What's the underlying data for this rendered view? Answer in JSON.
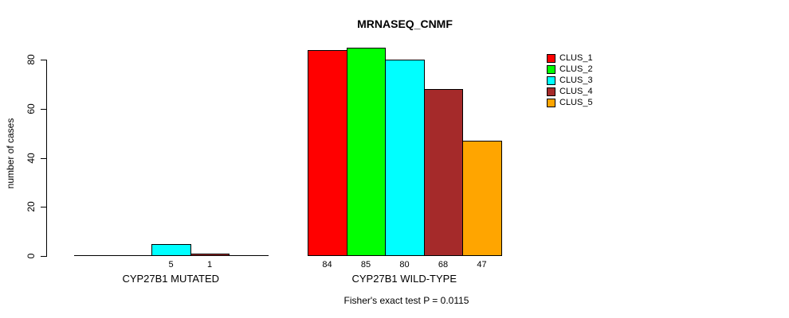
{
  "chart_data": {
    "type": "bar",
    "title": "MRNASEQ_CNMF",
    "ylabel": "number of cases",
    "xlabel": "",
    "ylim": [
      0,
      80
    ],
    "yticks": [
      0,
      20,
      40,
      60,
      80
    ],
    "grid": false,
    "legend_position": "top-right",
    "categories": [
      "CYP27B1 MUTATED",
      "CYP27B1 WILD-TYPE"
    ],
    "series": [
      {
        "name": "CLUS_1",
        "color": "#FF0000",
        "values": [
          0,
          84
        ]
      },
      {
        "name": "CLUS_2",
        "color": "#00FF00",
        "values": [
          0,
          85
        ]
      },
      {
        "name": "CLUS_3",
        "color": "#00FFFF",
        "values": [
          5,
          80
        ]
      },
      {
        "name": "CLUS_4",
        "color": "#A52A2A",
        "values": [
          1,
          68
        ]
      },
      {
        "name": "CLUS_5",
        "color": "#FFA500",
        "values": [
          0,
          47
        ]
      }
    ],
    "bar_value_labels": "shown below non-zero bars",
    "annotation": "Fisher's exact test P = 0.0115"
  }
}
